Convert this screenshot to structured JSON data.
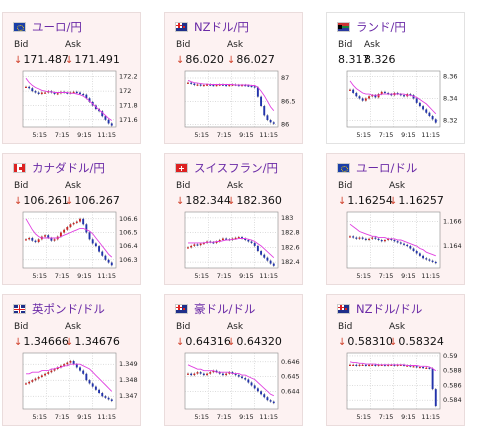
{
  "labels": {
    "bid": "Bid",
    "ask": "Ask"
  },
  "colors": {
    "card_bg": "#fdf2f2",
    "title": "#6a2aa6",
    "down_arrow": "#d0402a",
    "ma_line": "#e040e0",
    "candle_up": "#cc2222",
    "candle_down": "#2233aa"
  },
  "cards": [
    {
      "title": "ユーロ/円",
      "flag": "eu-flag",
      "down": true,
      "bid": "171.487",
      "ask": "171.491",
      "yticks": [
        "172.2",
        "172",
        "171.8",
        "171.6"
      ],
      "xticks": [
        "5:15",
        "7:15",
        "9:15",
        "11:15"
      ],
      "ylim": [
        171.5,
        172.28
      ],
      "candles": [
        172.06,
        172.04,
        172.0,
        171.98,
        171.96,
        171.98,
        171.98,
        172.0,
        171.98,
        171.96,
        171.97,
        171.99,
        171.98,
        171.97,
        171.98,
        171.99,
        171.98,
        171.96,
        171.95,
        171.9,
        171.85,
        171.8,
        171.75,
        171.72,
        171.65,
        171.6,
        171.55,
        171.52
      ],
      "ma": [
        172.18,
        172.12,
        172.08,
        172.05,
        172.03,
        172.01,
        172.0,
        171.99,
        171.99,
        171.98,
        171.98,
        171.98,
        171.98,
        171.98,
        171.97,
        171.97,
        171.96,
        171.95,
        171.93,
        171.9,
        171.86,
        171.82,
        171.78,
        171.74,
        171.7,
        171.66,
        171.62,
        171.59
      ]
    },
    {
      "title": "NZドル/円",
      "flag": "nz-flag",
      "down": true,
      "bid": "86.020",
      "ask": "86.027",
      "yticks": [
        "87",
        "86.5",
        "86"
      ],
      "xticks": [
        "5:15",
        "7:15",
        "9:15",
        "11:15"
      ],
      "ylim": [
        85.95,
        87.15
      ],
      "candles": [
        86.9,
        86.88,
        86.85,
        86.86,
        86.84,
        86.85,
        86.86,
        86.85,
        86.84,
        86.85,
        86.86,
        86.85,
        86.84,
        86.85,
        86.86,
        86.85,
        86.84,
        86.85,
        86.84,
        86.83,
        86.82,
        86.8,
        86.6,
        86.4,
        86.2,
        86.1,
        86.05,
        86.02
      ],
      "ma": [
        86.95,
        86.92,
        86.9,
        86.89,
        86.88,
        86.87,
        86.87,
        86.86,
        86.86,
        86.86,
        86.86,
        86.86,
        86.86,
        86.86,
        86.86,
        86.85,
        86.85,
        86.85,
        86.85,
        86.85,
        86.84,
        86.84,
        86.8,
        86.72,
        86.62,
        86.5,
        86.38,
        86.3
      ]
    },
    {
      "title": "ランド/円",
      "flag": "za-flag",
      "down": false,
      "bid": "8.317",
      "ask": "8.326",
      "yticks": [
        "8.36",
        "8.34",
        "8.32"
      ],
      "xticks": [
        "5:15",
        "7:15",
        "9:15",
        "11:15"
      ],
      "ylim": [
        8.314,
        8.365
      ],
      "candles": [
        8.348,
        8.345,
        8.342,
        8.34,
        8.338,
        8.34,
        8.342,
        8.343,
        8.341,
        8.344,
        8.346,
        8.345,
        8.344,
        8.343,
        8.345,
        8.344,
        8.343,
        8.342,
        8.344,
        8.343,
        8.34,
        8.336,
        8.333,
        8.33,
        8.327,
        8.324,
        8.321,
        8.318
      ],
      "ma": [
        8.356,
        8.352,
        8.349,
        8.347,
        8.345,
        8.344,
        8.344,
        8.343,
        8.343,
        8.343,
        8.344,
        8.344,
        8.344,
        8.344,
        8.344,
        8.344,
        8.344,
        8.344,
        8.343,
        8.343,
        8.342,
        8.341,
        8.339,
        8.337,
        8.335,
        8.332,
        8.329,
        8.326
      ]
    },
    {
      "title": "カナダドル/円",
      "flag": "ca-flag",
      "down": true,
      "bid": "106.261",
      "ask": "106.267",
      "yticks": [
        "106.6",
        "106.5",
        "106.4",
        "106.3"
      ],
      "xticks": [
        "5:15",
        "7:15",
        "9:15",
        "11:15"
      ],
      "ylim": [
        106.24,
        106.65
      ],
      "candles": [
        106.45,
        106.46,
        106.44,
        106.43,
        106.45,
        106.47,
        106.48,
        106.46,
        106.44,
        106.45,
        106.47,
        106.5,
        106.52,
        106.54,
        106.56,
        106.57,
        106.58,
        106.6,
        106.56,
        106.5,
        106.45,
        106.42,
        106.4,
        106.36,
        106.33,
        106.3,
        106.28,
        106.26
      ],
      "ma": [
        106.6,
        106.56,
        106.52,
        106.49,
        106.47,
        106.46,
        106.46,
        106.46,
        106.46,
        106.46,
        106.46,
        106.47,
        106.48,
        106.49,
        106.5,
        106.51,
        106.52,
        106.53,
        106.53,
        106.52,
        106.51,
        106.49,
        106.46,
        106.43,
        106.4,
        106.37,
        106.34,
        106.32
      ]
    },
    {
      "title": "スイスフラン/円",
      "flag": "ch-flag",
      "down": true,
      "bid": "182.344",
      "ask": "182.360",
      "yticks": [
        "183",
        "182.8",
        "182.6",
        "182.4"
      ],
      "xticks": [
        "5:15",
        "7:15",
        "9:15",
        "11:15"
      ],
      "ylim": [
        182.32,
        183.08
      ],
      "candles": [
        182.6,
        182.62,
        182.64,
        182.63,
        182.65,
        182.66,
        182.68,
        182.67,
        182.66,
        182.68,
        182.7,
        182.72,
        182.71,
        182.7,
        182.72,
        182.73,
        182.74,
        182.72,
        182.7,
        182.68,
        182.66,
        182.62,
        182.55,
        182.5,
        182.46,
        182.42,
        182.38,
        182.35
      ],
      "ma": [
        182.66,
        182.66,
        182.66,
        182.66,
        182.66,
        182.66,
        182.67,
        182.67,
        182.67,
        182.68,
        182.68,
        182.69,
        182.7,
        182.7,
        182.71,
        182.71,
        182.72,
        182.72,
        182.72,
        182.71,
        182.7,
        182.68,
        182.65,
        182.62,
        182.58,
        182.54,
        182.5,
        182.46
      ]
    },
    {
      "title": "ユーロ/ドル",
      "flag": "eu-flag",
      "down": true,
      "bid": "1.16254",
      "ask": "1.16257",
      "yticks": [
        "1.166",
        "1.164"
      ],
      "xticks": [
        "5:15",
        "7:15",
        "9:15",
        "11:15"
      ],
      "ylim": [
        1.1622,
        1.1668
      ],
      "candles": [
        1.1648,
        1.1647,
        1.1646,
        1.1647,
        1.1646,
        1.1645,
        1.1646,
        1.1647,
        1.1646,
        1.1645,
        1.1644,
        1.1645,
        1.1646,
        1.1645,
        1.1644,
        1.1643,
        1.1642,
        1.1641,
        1.164,
        1.1638,
        1.1636,
        1.1634,
        1.1632,
        1.163,
        1.1629,
        1.1628,
        1.1627,
        1.1626
      ],
      "ma": [
        1.1658,
        1.1656,
        1.1654,
        1.1652,
        1.1651,
        1.165,
        1.1649,
        1.1648,
        1.1648,
        1.1647,
        1.1647,
        1.1647,
        1.1646,
        1.1646,
        1.1646,
        1.1645,
        1.1645,
        1.1644,
        1.1643,
        1.1642,
        1.1641,
        1.164,
        1.1638,
        1.1637,
        1.1635,
        1.1634,
        1.1633,
        1.1632
      ]
    },
    {
      "title": "英ポンド/ドル",
      "flag": "gb-flag",
      "down": true,
      "bid": "1.34666",
      "ask": "1.34676",
      "yticks": [
        "1.349",
        "1.348",
        "1.347"
      ],
      "xticks": [
        "5:15",
        "7:15",
        "9:15",
        "11:15"
      ],
      "ylim": [
        1.3462,
        1.3497
      ],
      "candles": [
        1.3478,
        1.3479,
        1.348,
        1.3481,
        1.3482,
        1.3483,
        1.3484,
        1.3485,
        1.3486,
        1.3487,
        1.3488,
        1.3489,
        1.349,
        1.3491,
        1.3492,
        1.349,
        1.3488,
        1.3486,
        1.3484,
        1.348,
        1.3478,
        1.3476,
        1.3474,
        1.3472,
        1.347,
        1.3469,
        1.3468,
        1.3467
      ],
      "ma": [
        1.3484,
        1.3484,
        1.3485,
        1.3485,
        1.3485,
        1.3486,
        1.3486,
        1.3486,
        1.3487,
        1.3487,
        1.3488,
        1.3488,
        1.3489,
        1.3489,
        1.349,
        1.349,
        1.349,
        1.349,
        1.3489,
        1.3488,
        1.3487,
        1.3485,
        1.3483,
        1.3481,
        1.3479,
        1.3477,
        1.3475,
        1.3473
      ]
    },
    {
      "title": "豪ドル/ドル",
      "flag": "au-flag",
      "down": true,
      "bid": "0.64316",
      "ask": "0.64320",
      "yticks": [
        "0.646",
        "0.645",
        "0.644"
      ],
      "xticks": [
        "5:15",
        "7:15",
        "9:15",
        "11:15"
      ],
      "ylim": [
        0.6428,
        0.6466
      ],
      "candles": [
        0.6452,
        0.6451,
        0.6452,
        0.6453,
        0.6452,
        0.6451,
        0.6452,
        0.6453,
        0.6454,
        0.6453,
        0.6452,
        0.6451,
        0.6452,
        0.6453,
        0.6452,
        0.6451,
        0.645,
        0.6449,
        0.6448,
        0.6446,
        0.6444,
        0.6442,
        0.644,
        0.6438,
        0.6436,
        0.6434,
        0.6433,
        0.6432
      ],
      "ma": [
        0.6458,
        0.6457,
        0.6456,
        0.6455,
        0.6455,
        0.6454,
        0.6454,
        0.6454,
        0.6454,
        0.6453,
        0.6453,
        0.6453,
        0.6453,
        0.6453,
        0.6452,
        0.6452,
        0.6452,
        0.6451,
        0.6451,
        0.645,
        0.6449,
        0.6448,
        0.6446,
        0.6444,
        0.6442,
        0.644,
        0.6438,
        0.6437
      ]
    },
    {
      "title": "NZドル/ドル",
      "flag": "nz-flag",
      "down": true,
      "bid": "0.58310",
      "ask": "0.58324",
      "yticks": [
        "0.59",
        "0.588",
        "0.586",
        "0.584"
      ],
      "xticks": [
        "5:15",
        "7:15",
        "9:15",
        "11:15"
      ],
      "ylim": [
        0.5828,
        0.5904
      ],
      "candles": [
        0.5888,
        0.5888,
        0.5887,
        0.5888,
        0.5888,
        0.5887,
        0.5888,
        0.5888,
        0.5887,
        0.5888,
        0.5888,
        0.5887,
        0.5888,
        0.5888,
        0.5887,
        0.5888,
        0.5888,
        0.5887,
        0.5887,
        0.5886,
        0.5886,
        0.5885,
        0.5885,
        0.5884,
        0.5884,
        0.5883,
        0.5855,
        0.5832
      ],
      "ma": [
        0.5892,
        0.5891,
        0.5891,
        0.589,
        0.589,
        0.5889,
        0.5889,
        0.5889,
        0.5889,
        0.5888,
        0.5888,
        0.5888,
        0.5888,
        0.5888,
        0.5888,
        0.5888,
        0.5888,
        0.5888,
        0.5887,
        0.5887,
        0.5887,
        0.5887,
        0.5886,
        0.5886,
        0.5886,
        0.5885,
        0.5883,
        0.588
      ]
    }
  ]
}
